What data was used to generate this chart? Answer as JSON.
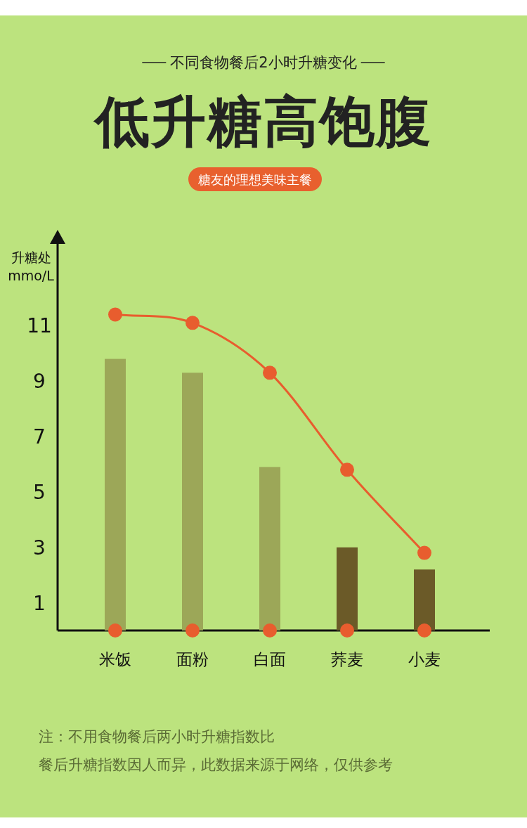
{
  "chart_data": {
    "type": "bar",
    "title": "低升糖高饱腹",
    "subtitle": "不同食物餐后2小时升糖变化",
    "annotations": [
      "糖友的理想美味主餐",
      "注：不用食物餐后两小时升糖指数比",
      "餐后升糖指数因人而异，此数据来源于网络，仅供参考"
    ],
    "ylabel": "升糖处 mmo/L",
    "categories": [
      "米饭",
      "面粉",
      "白面",
      "荞麦",
      "小麦"
    ],
    "series": [
      {
        "colors": [
          "#9ca758",
          "#9ca758",
          "#9ca758",
          "#6b5a28",
          "#6b5a28"
        ],
        "values": [
          9.8,
          9.3,
          5.9,
          3.0,
          2.2
        ]
      },
      {
        "type": "line",
        "color": "#e85d2e",
        "marker": "circle",
        "values": [
          11.4,
          11.1,
          9.3,
          5.8,
          2.8
        ]
      },
      {
        "type": "scatter",
        "color": "#e85d2e",
        "marker": "circle",
        "values": [
          0,
          0,
          0,
          0,
          0
        ]
      }
    ],
    "ylim": [
      0,
      14
    ],
    "yticks": [
      1,
      3,
      5,
      7,
      9,
      11
    ],
    "grid": false
  }
}
